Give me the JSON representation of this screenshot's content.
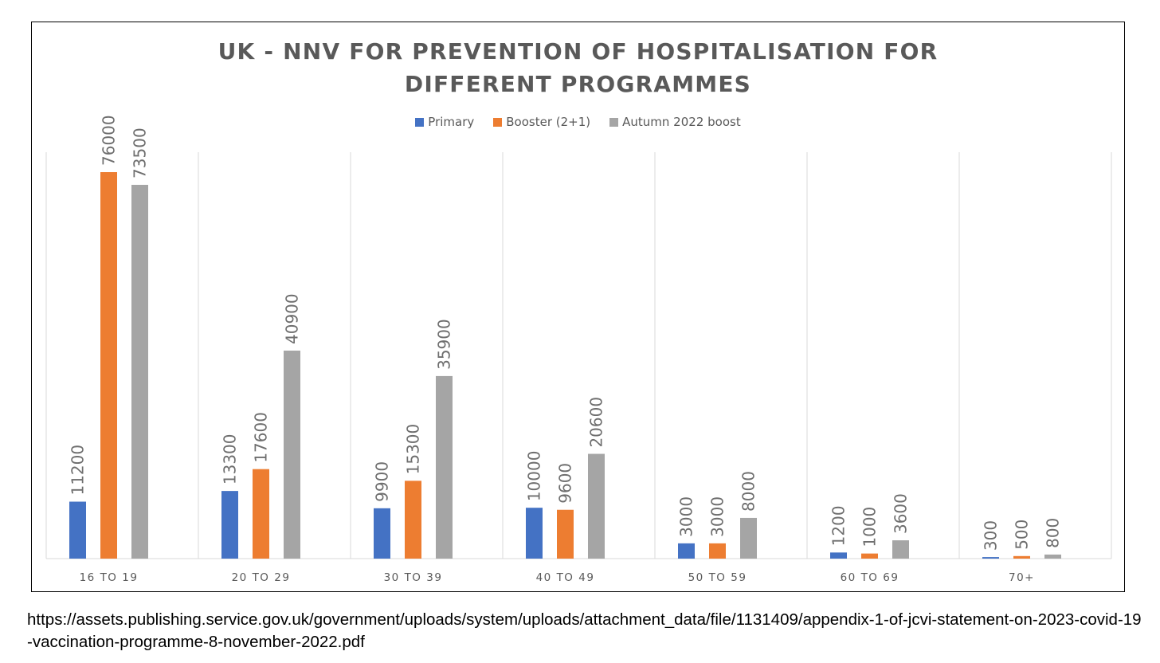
{
  "chart_data": {
    "type": "bar",
    "title": "UK - NNV FOR PREVENTION OF HOSPITALISATION FOR DIFFERENT PROGRAMMES",
    "categories": [
      "16 TO 19",
      "20 TO 29",
      "30 TO 39",
      "40 TO 49",
      "50 TO 59",
      "60 TO 69",
      "70+"
    ],
    "series": [
      {
        "name": "Primary",
        "color": "#4472C4",
        "values": [
          11200,
          13300,
          9900,
          10000,
          3000,
          1200,
          300
        ]
      },
      {
        "name": "Booster (2+1)",
        "color": "#ED7D31",
        "values": [
          76000,
          17600,
          15300,
          9600,
          3000,
          1000,
          500
        ]
      },
      {
        "name": "Autumn 2022 boost",
        "color": "#A5A5A5",
        "values": [
          73500,
          40900,
          35900,
          20600,
          8000,
          3600,
          800
        ]
      }
    ],
    "xlabel": "",
    "ylabel": "",
    "ylim": [
      0,
      80000
    ],
    "grid": "vertical category separators",
    "legend": "top-center",
    "data_labels": "rotated vertical above bars"
  },
  "source": {
    "url_line": "https://assets.publishing.service.gov.uk/government/uploads/system/uploads/attachment_data/file/1131409/appendix-1-of-jcvi-statement-on-2023-covid-19-vaccination-programme-8-november-2022.pdf"
  }
}
